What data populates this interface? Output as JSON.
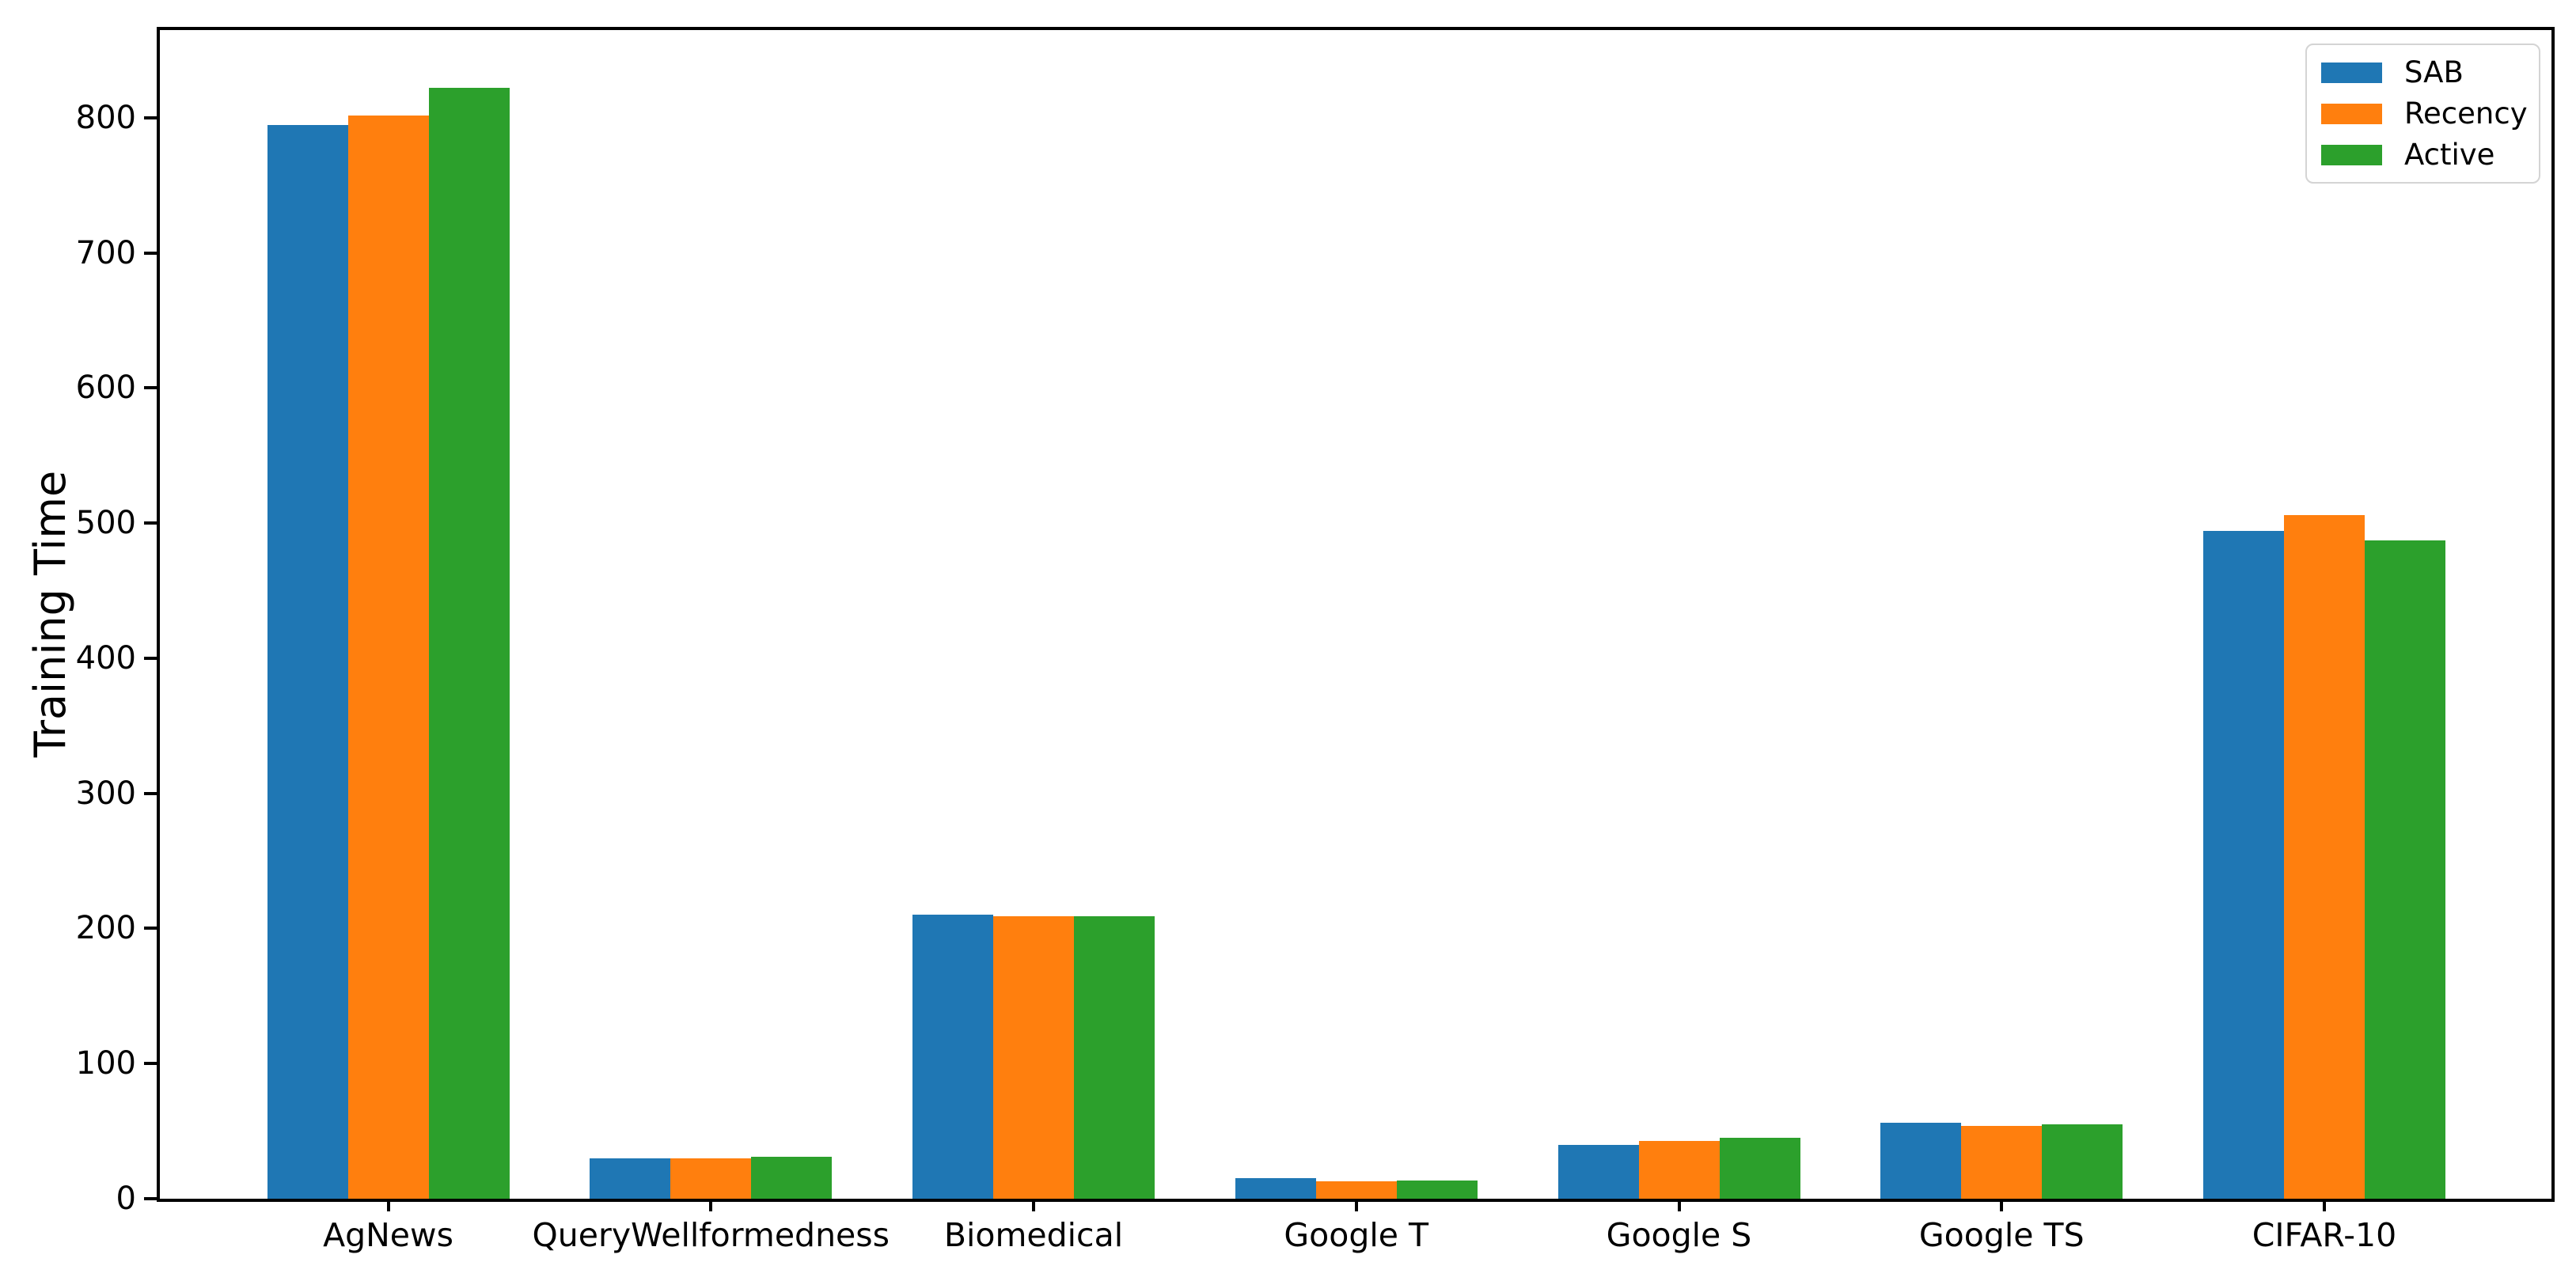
{
  "chart_data": {
    "type": "bar",
    "title": "",
    "xlabel": "",
    "ylabel": "Training Time",
    "categories": [
      "AgNews",
      "QueryWellformedness",
      "Biomedical",
      "Google T",
      "Google S",
      "Google TS",
      "CIFAR-10"
    ],
    "series": [
      {
        "name": "SAB",
        "color": "#1f77b4",
        "values": [
          795,
          30,
          210,
          15,
          40,
          56,
          494
        ]
      },
      {
        "name": "Recency",
        "color": "#ff7f0e",
        "values": [
          802,
          30,
          209,
          13,
          43,
          54,
          506
        ]
      },
      {
        "name": "Active",
        "color": "#2ca02c",
        "values": [
          822,
          31,
          209,
          13.5,
          45,
          55,
          487
        ]
      }
    ],
    "ylim": [
      0,
      865
    ],
    "yticks": [
      0,
      100,
      200,
      300,
      400,
      500,
      600,
      700,
      800
    ],
    "grid": false,
    "legend_position": "upper right",
    "axis_color": "#000000",
    "background_color": "#ffffff"
  }
}
